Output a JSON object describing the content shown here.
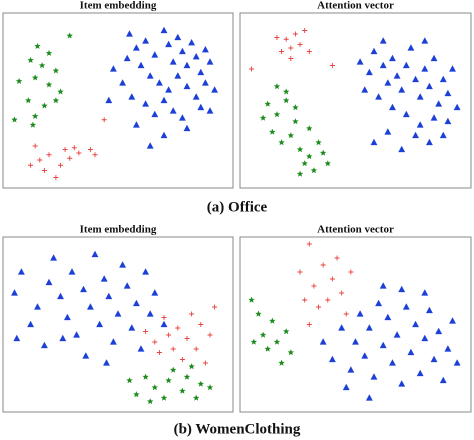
{
  "chart_data": [
    {
      "type": "scatter",
      "title": "Item embedding",
      "xlim": [
        0,
        100
      ],
      "ylim": [
        0,
        100
      ],
      "series": [
        {
          "color": "#1a8a1a",
          "marker": "star",
          "x": [
            15,
            20,
            29,
            12,
            17,
            23,
            7,
            14,
            20,
            25,
            11,
            18,
            5,
            14,
            23,
            13
          ],
          "values": [
            81,
            77,
            87,
            73,
            70,
            67,
            61,
            63,
            59,
            55,
            50,
            47,
            39,
            41,
            50,
            36
          ]
        },
        {
          "color": "#e8433f",
          "marker": "plus",
          "x": [
            14,
            20,
            27,
            31,
            33,
            38,
            40,
            29,
            25,
            18,
            23,
            12,
            44,
            16
          ],
          "values": [
            24,
            19,
            22,
            23,
            20,
            22,
            19,
            17,
            13,
            10,
            6,
            13,
            39,
            16
          ]
        },
        {
          "color": "#1c3fd8",
          "marker": "triangle",
          "x": [
            55,
            58,
            62,
            66,
            70,
            72,
            74,
            76,
            78,
            80,
            82,
            84,
            86,
            88,
            90,
            60,
            64,
            68,
            72,
            76,
            80,
            84,
            88,
            52,
            56,
            62,
            66,
            70,
            74,
            78,
            54,
            48,
            92,
            86,
            64,
            70,
            80,
            58,
            46,
            90
          ],
          "values": [
            88,
            80,
            84,
            76,
            90,
            82,
            72,
            86,
            78,
            70,
            83,
            75,
            66,
            79,
            72,
            70,
            64,
            60,
            56,
            64,
            58,
            52,
            60,
            60,
            52,
            48,
            42,
            50,
            44,
            40,
            74,
            68,
            56,
            46,
            24,
            30,
            34,
            36,
            50,
            44
          ]
        }
      ]
    },
    {
      "type": "scatter",
      "title": "Attention vector",
      "xlim": [
        0,
        100
      ],
      "ylim": [
        0,
        100
      ],
      "series": [
        {
          "color": "#1a8a1a",
          "marker": "star",
          "x": [
            12,
            16,
            20,
            24,
            14,
            18,
            22,
            26,
            28,
            30,
            32,
            34,
            36,
            10,
            20,
            24,
            30,
            16,
            38,
            26
          ],
          "values": [
            48,
            42,
            50,
            38,
            32,
            26,
            30,
            22,
            14,
            18,
            10,
            26,
            20,
            40,
            55,
            46,
            34,
            58,
            14,
            8
          ]
        },
        {
          "color": "#e8433f",
          "marker": "plus",
          "x": [
            20,
            22,
            24,
            26,
            18,
            28,
            22,
            30,
            5,
            40,
            16
          ],
          "values": [
            85,
            80,
            88,
            82,
            78,
            90,
            74,
            78,
            68,
            70,
            86
          ]
        },
        {
          "color": "#1c3fd8",
          "marker": "triangle",
          "x": [
            52,
            56,
            58,
            62,
            64,
            66,
            68,
            70,
            72,
            74,
            76,
            78,
            80,
            82,
            84,
            86,
            88,
            90,
            92,
            60,
            66,
            72,
            78,
            84,
            90,
            58,
            64,
            70,
            76,
            82,
            88,
            62,
            80,
            94,
            54
          ],
          "values": [
            72,
            66,
            78,
            70,
            60,
            74,
            64,
            56,
            70,
            80,
            62,
            52,
            68,
            58,
            74,
            48,
            62,
            54,
            68,
            52,
            46,
            42,
            36,
            40,
            38,
            26,
            32,
            22,
            30,
            26,
            30,
            84,
            84,
            46,
            56
          ]
        }
      ]
    },
    {
      "type": "scatter",
      "title": "Item embedding",
      "xlim": [
        0,
        100
      ],
      "ylim": [
        0,
        100
      ],
      "series": [
        {
          "color": "#1a8a1a",
          "marker": "star",
          "x": [
            55,
            58,
            62,
            66,
            70,
            72,
            74,
            78,
            80,
            84,
            86,
            90,
            64,
            82
          ],
          "values": [
            18,
            10,
            20,
            14,
            8,
            18,
            24,
            12,
            20,
            8,
            16,
            14,
            6,
            26
          ]
        },
        {
          "color": "#e8433f",
          "marker": "plus",
          "x": [
            62,
            66,
            70,
            72,
            74,
            76,
            78,
            80,
            82,
            84,
            86,
            88,
            90,
            92,
            68
          ],
          "values": [
            46,
            40,
            54,
            44,
            36,
            48,
            30,
            42,
            56,
            36,
            50,
            28,
            44,
            60,
            34
          ]
        },
        {
          "color": "#1c3fd8",
          "marker": "triangle",
          "x": [
            5,
            8,
            12,
            15,
            20,
            22,
            25,
            28,
            30,
            32,
            35,
            38,
            40,
            42,
            44,
            46,
            48,
            50,
            52,
            54,
            56,
            58,
            60,
            62,
            64,
            66,
            18,
            36,
            70,
            6,
            26,
            45
          ],
          "values": [
            68,
            80,
            50,
            60,
            74,
            88,
            66,
            54,
            80,
            44,
            70,
            60,
            90,
            50,
            76,
            66,
            40,
            56,
            84,
            72,
            48,
            62,
            36,
            80,
            56,
            68,
            38,
            32,
            50,
            42,
            42,
            28
          ]
        }
      ]
    },
    {
      "type": "scatter",
      "title": "Attention vector",
      "xlim": [
        0,
        100
      ],
      "ylim": [
        0,
        100
      ],
      "series": [
        {
          "color": "#1a8a1a",
          "marker": "star",
          "x": [
            5,
            8,
            10,
            12,
            14,
            16,
            18,
            20,
            22,
            6
          ],
          "values": [
            64,
            56,
            44,
            36,
            52,
            40,
            28,
            46,
            34,
            40
          ]
        },
        {
          "color": "#e8433f",
          "marker": "plus",
          "x": [
            30,
            26,
            32,
            36,
            38,
            40,
            42,
            44,
            46,
            34,
            30,
            48,
            28
          ],
          "values": [
            96,
            80,
            72,
            84,
            64,
            76,
            88,
            68,
            56,
            60,
            50,
            80,
            64
          ]
        },
        {
          "color": "#1c3fd8",
          "marker": "triangle",
          "x": [
            36,
            40,
            44,
            48,
            50,
            52,
            54,
            56,
            58,
            60,
            62,
            64,
            66,
            68,
            70,
            72,
            74,
            76,
            78,
            80,
            82,
            84,
            86,
            88,
            90,
            92,
            62,
            70,
            80,
            94,
            46,
            56
          ],
          "values": [
            40,
            30,
            48,
            24,
            40,
            56,
            32,
            48,
            20,
            62,
            38,
            54,
            28,
            44,
            16,
            60,
            34,
            50,
            22,
            42,
            58,
            30,
            46,
            18,
            36,
            52,
            72,
            70,
            68,
            28,
            14,
            8
          ]
        }
      ]
    }
  ],
  "captions": [
    "(a) Office",
    "(b) WomenClothing"
  ]
}
